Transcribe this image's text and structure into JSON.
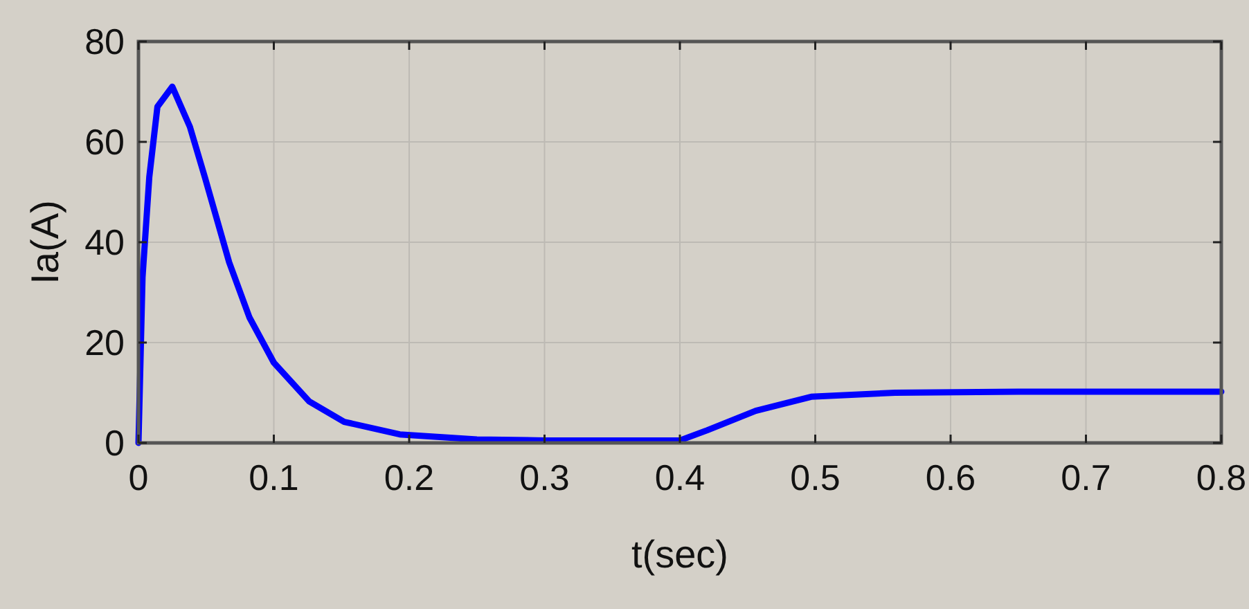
{
  "chart_data": {
    "type": "line",
    "xlabel": "t(sec)",
    "ylabel": "Ia(A)",
    "xlim": [
      0,
      0.8
    ],
    "ylim": [
      0,
      80
    ],
    "xticks": [
      0,
      0.1,
      0.2,
      0.3,
      0.4,
      0.5,
      0.6,
      0.7,
      0.8
    ],
    "yticks": [
      0,
      20,
      40,
      60,
      80
    ],
    "grid": true,
    "line_style": "solid",
    "series": [
      {
        "color": "#0000ff",
        "x": [
          0,
          0.003,
          0.008,
          0.014,
          0.025,
          0.038,
          0.049,
          0.067,
          0.082,
          0.1,
          0.126,
          0.152,
          0.193,
          0.25,
          0.3,
          0.35,
          0.4,
          0.42,
          0.456,
          0.497,
          0.559,
          0.65,
          0.8
        ],
        "values": [
          0,
          33,
          53,
          67,
          71,
          63,
          53,
          36,
          25,
          16,
          8.3,
          4.2,
          1.7,
          0.7,
          0.5,
          0.5,
          0.5,
          2.5,
          6.4,
          9.2,
          10,
          10.2,
          10.2
        ]
      }
    ]
  }
}
